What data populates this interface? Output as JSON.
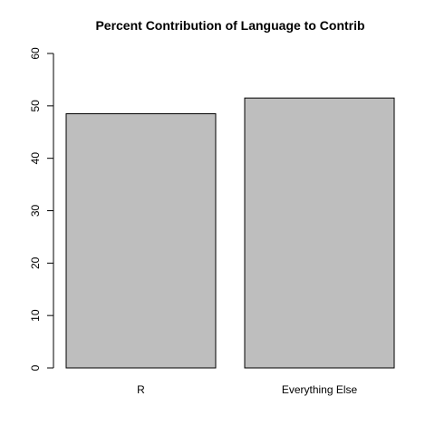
{
  "chart_data": {
    "type": "bar",
    "title": "Percent Contribution of Language to Contrib",
    "xlabel": "",
    "ylabel": "",
    "categories": [
      "R",
      "Everything Else"
    ],
    "values": [
      48.5,
      51.5
    ],
    "ylim": [
      0,
      60
    ],
    "yticks": [
      0,
      10,
      20,
      30,
      40,
      50,
      60
    ],
    "bar_fill": "#bebebe",
    "bar_stroke": "#000000",
    "grid": false,
    "legend": "none"
  }
}
